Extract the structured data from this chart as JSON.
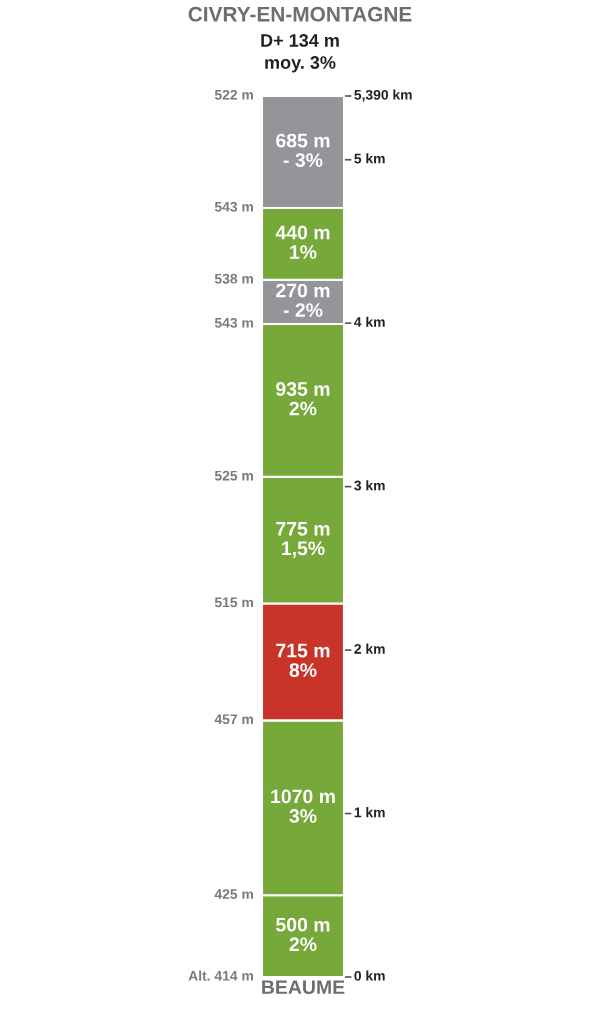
{
  "chart_data": {
    "type": "bar",
    "stacked": true,
    "title": "CIVRY-EN-MONTAGNE",
    "subtitle": "D+ 134 m\nmoy. 3%",
    "xlabel": "BEAUME",
    "categories": [
      null
    ],
    "series": [
      {
        "color": "#76a83a",
        "values": [
          500
        ],
        "value_labels": [
          "500 m\n2%"
        ]
      },
      {
        "color": "#76a83a",
        "values": [
          1070
        ],
        "value_labels": [
          "1070 m\n3%"
        ]
      },
      {
        "color": "#c8342a",
        "values": [
          715
        ],
        "value_labels": [
          "715 m\n8%"
        ]
      },
      {
        "color": "#76a83a",
        "values": [
          775
        ],
        "value_labels": [
          "775 m\n1,5%"
        ]
      },
      {
        "color": "#76a83a",
        "values": [
          935
        ],
        "value_labels": [
          "935 m\n2%"
        ]
      },
      {
        "color": "#939598",
        "values": [
          270
        ],
        "value_labels": [
          "270 m\n- 2%"
        ]
      },
      {
        "color": "#76a83a",
        "values": [
          440
        ],
        "value_labels": [
          "440 m\n1%"
        ]
      },
      {
        "color": "#939598",
        "values": [
          685
        ],
        "value_labels": [
          "685 m\n- 3%"
        ]
      }
    ],
    "ylim": [
      0,
      5390
    ],
    "tick_labels": false,
    "ref_lines": [
      {
        "axis": "y",
        "value": 0,
        "label": "0 km"
      },
      {
        "axis": "y",
        "value": 1000,
        "label": "1 km"
      },
      {
        "axis": "y",
        "value": 2000,
        "label": "2 km"
      },
      {
        "axis": "y",
        "value": 3000,
        "label": "3 km"
      },
      {
        "axis": "y",
        "value": 4000,
        "label": "4 km"
      },
      {
        "axis": "y",
        "value": 5000,
        "label": "5 km"
      },
      {
        "axis": "y",
        "value": 5390,
        "label": "5,390 km"
      }
    ],
    "annotations": [
      "Alt. 414 m",
      "425 m",
      "457 m",
      "515 m",
      "525 m",
      "543 m",
      "538 m",
      "543 m",
      "522 m"
    ],
    "grid": false
  }
}
